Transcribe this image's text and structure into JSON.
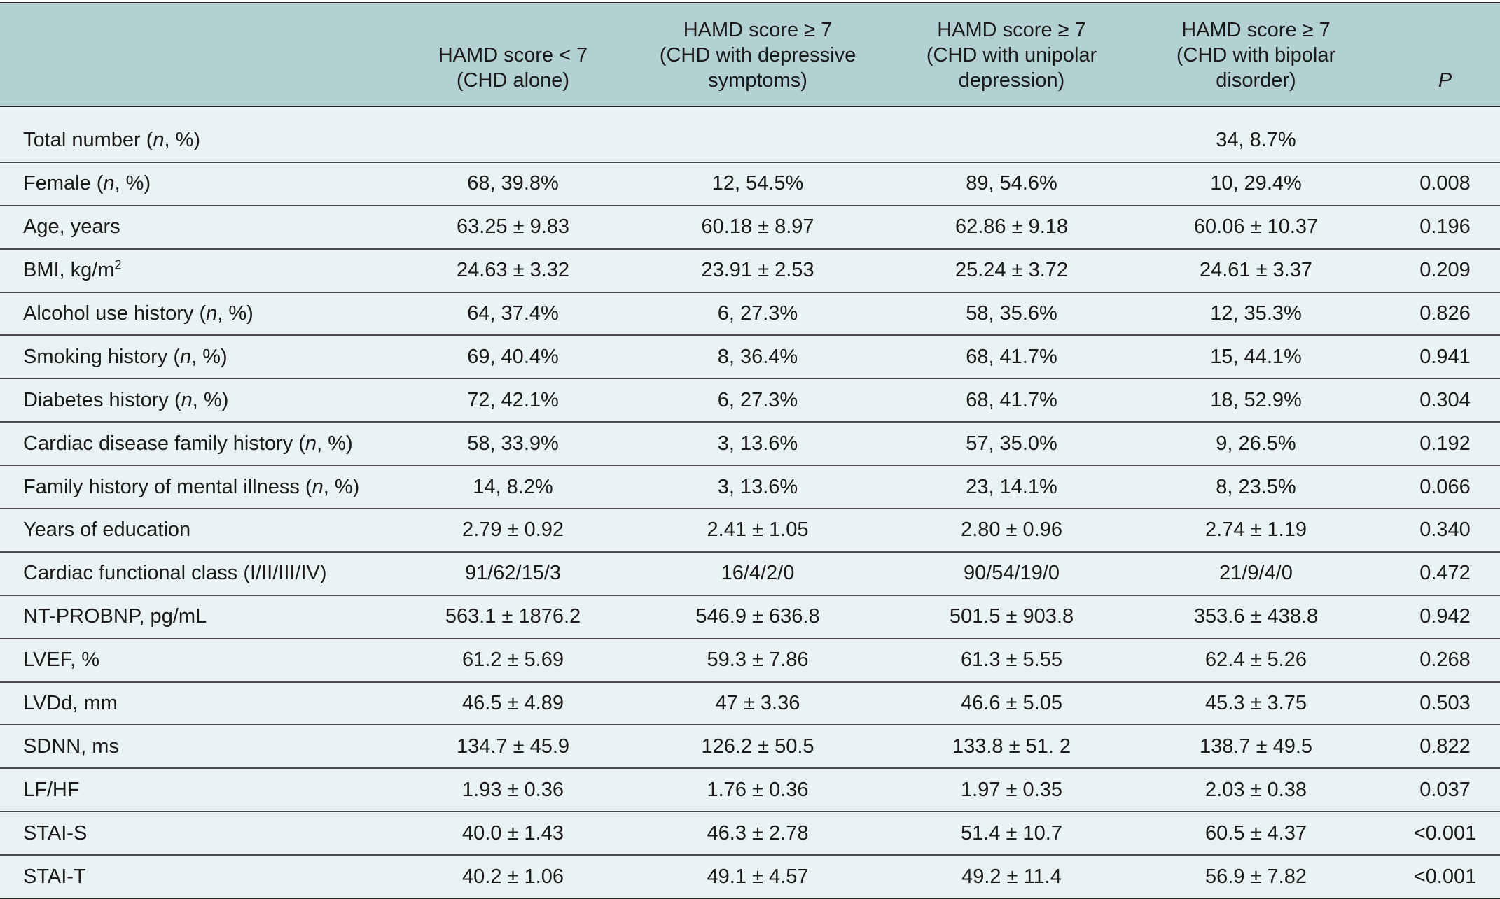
{
  "header": {
    "col1_line1": "HAMD score < 7",
    "col1_line2": "(CHD alone)",
    "col2_line1": "HAMD score ≥ 7",
    "col2_line2": "(CHD with depressive",
    "col2_line3": "symptoms)",
    "col3_line1": "HAMD score ≥ 7",
    "col3_line2": "(CHD with unipolar",
    "col3_line3": "depression)",
    "col4_line1": "HAMD score ≥ 7",
    "col4_line2": "(CHD with bipolar",
    "col4_line3": "disorder)",
    "p": "P"
  },
  "rows": [
    {
      "label_pre": "Total number (",
      "label_it": "n",
      "label_post": ", %)",
      "c1": "",
      "c2": "",
      "c3": "",
      "c4": "34, 8.7%",
      "p": ""
    },
    {
      "label_pre": "Female (",
      "label_it": "n",
      "label_post": ", %)",
      "c1": "68, 39.8%",
      "c2": "12, 54.5%",
      "c3": "89, 54.6%",
      "c4": "10, 29.4%",
      "p": "0.008"
    },
    {
      "label_pre": "Age, years",
      "label_it": "",
      "label_post": "",
      "c1": "63.25 ± 9.83",
      "c2": "60.18 ± 8.97",
      "c3": "62.86 ± 9.18",
      "c4": "60.06 ± 10.37",
      "p": "0.196"
    },
    {
      "label_pre": "BMI, kg/m",
      "label_sup": "2",
      "c1": "24.63 ± 3.32",
      "c2": "23.91 ± 2.53",
      "c3": "25.24 ± 3.72",
      "c4": "24.61 ± 3.37",
      "p": "0.209"
    },
    {
      "label_pre": "Alcohol use history (",
      "label_it": "n",
      "label_post": ", %)",
      "c1": "64, 37.4%",
      "c2": "6, 27.3%",
      "c3": "58, 35.6%",
      "c4": "12, 35.3%",
      "p": "0.826"
    },
    {
      "label_pre": "Smoking history (",
      "label_it": "n",
      "label_post": ", %)",
      "c1": "69, 40.4%",
      "c2": "8, 36.4%",
      "c3": "68, 41.7%",
      "c4": "15, 44.1%",
      "p": "0.941"
    },
    {
      "label_pre": "Diabetes history (",
      "label_it": "n",
      "label_post": ", %)",
      "c1": "72, 42.1%",
      "c2": "6, 27.3%",
      "c3": "68, 41.7%",
      "c4": "18, 52.9%",
      "p": "0.304"
    },
    {
      "label_pre": "Cardiac disease family history (",
      "label_it": "n",
      "label_post": ", %)",
      "c1": "58, 33.9%",
      "c2": "3, 13.6%",
      "c3": "57, 35.0%",
      "c4": "9, 26.5%",
      "p": "0.192"
    },
    {
      "label_pre": "Family history of mental illness (",
      "label_it": "n",
      "label_post": ", %)",
      "c1": "14, 8.2%",
      "c2": "3, 13.6%",
      "c3": "23, 14.1%",
      "c4": "8, 23.5%",
      "p": "0.066"
    },
    {
      "label_pre": "Years of education",
      "label_it": "",
      "label_post": "",
      "c1": "2.79 ± 0.92",
      "c2": "2.41 ± 1.05",
      "c3": "2.80 ± 0.96",
      "c4": "2.74 ± 1.19",
      "p": "0.340"
    },
    {
      "label_pre": "Cardiac functional class (I/II/III/IV)",
      "label_it": "",
      "label_post": "",
      "c1": "91/62/15/3",
      "c2": "16/4/2/0",
      "c3": "90/54/19/0",
      "c4": "21/9/4/0",
      "p": "0.472"
    },
    {
      "label_pre": "NT-PROBNP, pg/mL",
      "label_it": "",
      "label_post": "",
      "c1": "563.1 ± 1876.2",
      "c2": "546.9 ± 636.8",
      "c3": "501.5 ± 903.8",
      "c4": "353.6 ± 438.8",
      "p": "0.942"
    },
    {
      "label_pre": "LVEF, %",
      "label_it": "",
      "label_post": "",
      "c1": "61.2 ± 5.69",
      "c2": "59.3 ± 7.86",
      "c3": "61.3 ± 5.55",
      "c4": "62.4 ± 5.26",
      "p": "0.268"
    },
    {
      "label_pre": "LVDd, mm",
      "label_it": "",
      "label_post": "",
      "c1": "46.5 ± 4.89",
      "c2": "47 ± 3.36",
      "c3": "46.6 ± 5.05",
      "c4": "45.3 ± 3.75",
      "p": "0.503"
    },
    {
      "label_pre": "SDNN, ms",
      "label_it": "",
      "label_post": "",
      "c1": "134.7 ± 45.9",
      "c2": "126.2 ± 50.5",
      "c3": "133.8 ± 51. 2",
      "c4": "138.7 ± 49.5",
      "p": "0.822"
    },
    {
      "label_pre": "LF/HF",
      "label_it": "",
      "label_post": "",
      "c1": "1.93 ± 0.36",
      "c2": "1.76 ± 0.36",
      "c3": "1.97 ± 0.35",
      "c4": "2.03 ± 0.38",
      "p": "0.037"
    },
    {
      "label_pre": "STAI-S",
      "label_it": "",
      "label_post": "",
      "c1": "40.0 ± 1.43",
      "c2": "46.3 ± 2.78",
      "c3": "51.4 ± 10.7",
      "c4": "60.5 ± 4.37",
      "p": "<0.001"
    },
    {
      "label_pre": "STAI-T",
      "label_it": "",
      "label_post": "",
      "c1": "40.2 ± 1.06",
      "c2": "49.1 ± 4.57",
      "c3": "49.2 ± 11.4",
      "c4": "56.9 ± 7.82",
      "p": "<0.001"
    }
  ]
}
